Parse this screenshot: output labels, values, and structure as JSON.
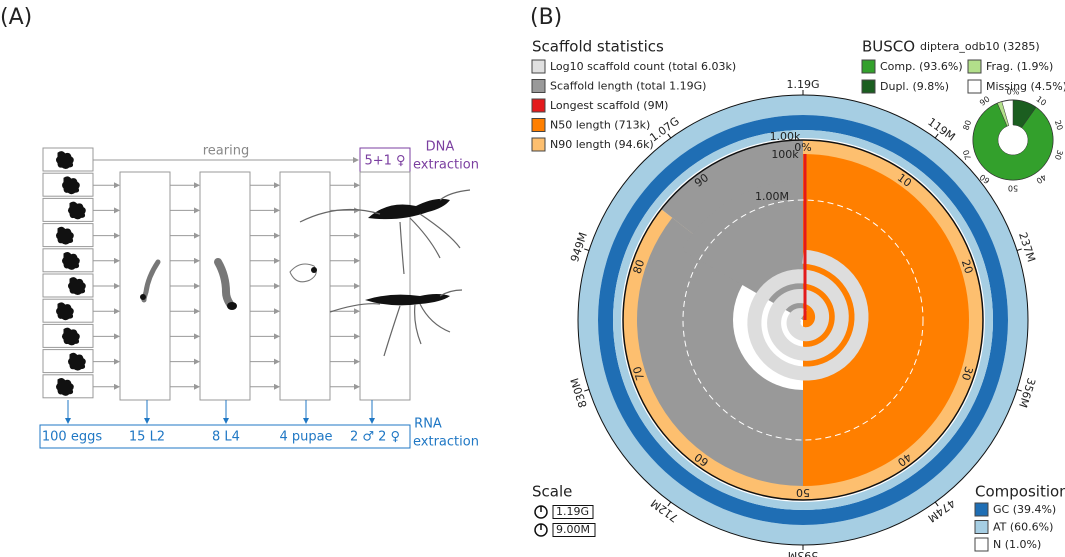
{
  "panel_a": {
    "label": "(A)",
    "rearing": "rearing",
    "dna": {
      "count": "5+1 ♀",
      "line1": "DNA",
      "line2": "extraction"
    },
    "stages": [
      "100 eggs",
      "15 L2",
      "8 L4",
      "4 pupae",
      "2 ♂ 2 ♀"
    ],
    "rna": {
      "line1": "RNA",
      "line2": "extraction"
    }
  },
  "panel_b": {
    "label": "(B)",
    "scaffold_statistics": {
      "title": "Scaffold statistics",
      "items": [
        "Log10 scaffold count (total 6.03k)",
        "Scaffold length (total 1.19G)",
        "Longest scaffold (9M)",
        "N50 length (713k)",
        "N90 length (94.6k)"
      ]
    },
    "busco": {
      "title": "BUSCO",
      "dataset": "diptera_odb10 (3285)",
      "items": [
        "Comp. (93.6%)",
        "Frag. (1.9%)",
        "Dupl. (9.8%)",
        "Missing (4.5%)"
      ],
      "ticks": [
        "0%",
        "10",
        "20",
        "30",
        "40",
        "50",
        "60",
        "70",
        "80",
        "90"
      ]
    },
    "ring_labels": [
      "1.19G",
      "119M",
      "237M",
      "356M",
      "474M",
      "593M",
      "712M",
      "830M",
      "949M",
      "1.07G"
    ],
    "percent_labels": [
      "0%",
      "10",
      "20",
      "30",
      "40",
      "50",
      "60",
      "70",
      "80",
      "90"
    ],
    "radial_labels": [
      "1.00k",
      "100k",
      "1.00M"
    ],
    "scale": {
      "title": "Scale",
      "items": [
        "1.19G",
        "9.00M"
      ]
    },
    "composition": {
      "title": "Composition",
      "items": [
        "GC (39.4%)",
        "AT (60.6%)",
        "N (1.0%)"
      ]
    }
  }
}
